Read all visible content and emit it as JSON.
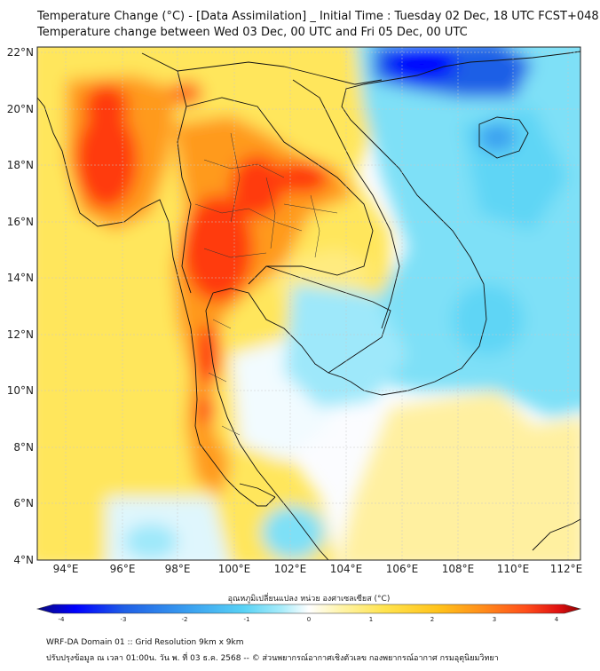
{
  "header": {
    "title_line1": "Temperature Change (°C) - [Data Assimilation] _ Initial Time : Tuesday 02 Dec, 18 UTC FCST+048",
    "title_line2": "Temperature change between Wed 03 Dec, 00 UTC and Fri 05 Dec, 00 UTC"
  },
  "map": {
    "lat_labels": [
      "22°N",
      "20°N",
      "18°N",
      "16°N",
      "14°N",
      "12°N",
      "10°N",
      "8°N",
      "6°N",
      "4°N"
    ],
    "lon_labels": [
      "94°E",
      "96°E",
      "98°E",
      "100°E",
      "102°E",
      "104°E",
      "106°E",
      "108°E",
      "110°E",
      "112°E"
    ]
  },
  "colorbar": {
    "label": "อุณหภูมิเปลี่ยนแปลง หน่วย องศาเซลเซียส (°C)",
    "ticks": [
      "-4",
      "-3",
      "-2",
      "-1",
      "0",
      "1",
      "2",
      "3",
      "4"
    ],
    "colors": [
      "#0a0a7a",
      "#0000ff",
      "#1f5fe6",
      "#3aa0f0",
      "#58d2f5",
      "#a8ecfa",
      "#ffffff",
      "#fff4a8",
      "#ffe34d",
      "#ffc21a",
      "#ff8c1a",
      "#ff4d1a",
      "#e01010",
      "#8b0000"
    ]
  },
  "footer": {
    "line1": "WRF-DA Domain 01 :: Grid Resolution 9km x 9km",
    "line2": "ปรับปรุงข้อมูล ณ เวลา 01:00น. วัน พ. ที่ 03 ธ.ค. 2568 -- © ส่วนพยากรณ์อากาศเชิงตัวเลข กองพยากรณ์อากาศ กรมอุตุนิยมวิทยา"
  }
}
